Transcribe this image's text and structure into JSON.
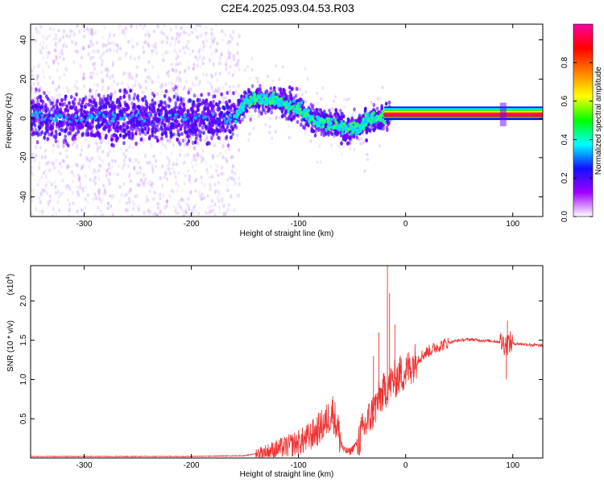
{
  "title": "C2E4.2025.093.04.53.R03",
  "colors": {
    "snr_line": "#ee3333",
    "axis": "#000000"
  },
  "chart_data": [
    {
      "type": "heatmap",
      "xlabel": "Height of straight line (km)",
      "ylabel": "Frequency (Hz)",
      "xlim": [
        -350,
        128
      ],
      "ylim": [
        -50,
        48
      ],
      "xticks": [
        -300,
        -200,
        -100,
        0,
        100
      ],
      "yticks": [
        -40,
        -20,
        0,
        20,
        40
      ],
      "colorbar": {
        "label": "Normalized spectral amplitude",
        "range": [
          0,
          1
        ],
        "ticks": [
          0.0,
          0.2,
          0.4,
          0.6,
          0.8
        ],
        "stops": [
          "#ffffff",
          "#a000ff",
          "#1010ff",
          "#00ffff",
          "#00ff00",
          "#ffff00",
          "#ff8000",
          "#ff0000",
          "#ff00a0"
        ]
      },
      "ridge": [
        [
          -350,
          1
        ],
        [
          -300,
          0
        ],
        [
          -250,
          1
        ],
        [
          -200,
          0
        ],
        [
          -160,
          0
        ],
        [
          -150,
          8
        ],
        [
          -140,
          10
        ],
        [
          -120,
          9
        ],
        [
          -100,
          5
        ],
        [
          -85,
          -1
        ],
        [
          -70,
          -3
        ],
        [
          -55,
          -5
        ],
        [
          -45,
          -5
        ],
        [
          -35,
          -1
        ],
        [
          -20,
          1
        ],
        [
          0,
          2
        ],
        [
          128,
          2
        ]
      ]
    },
    {
      "type": "line",
      "xlabel": "Height of straight line (km)",
      "ylabel": "SNR (10 * v/v)",
      "y_multiplier_label": "(x10",
      "y_multiplier_exp": "4",
      "y_multiplier_close": ")",
      "xlim": [
        -350,
        128
      ],
      "ylim": [
        0,
        2.45
      ],
      "xticks": [
        -300,
        -200,
        -100,
        0,
        100
      ],
      "yticks": [
        0.5,
        1.0,
        1.5,
        2.0
      ],
      "series": [
        {
          "x": [
            -350,
            -300,
            -250,
            -200,
            -150,
            -130,
            -110,
            -95,
            -85,
            -75,
            -68,
            -62,
            -58,
            -52,
            -45,
            -38,
            -30,
            -25,
            -20,
            -15,
            -10,
            -5,
            0,
            10,
            20,
            30,
            40,
            50,
            60,
            70,
            80,
            88,
            93,
            97,
            100,
            110,
            128
          ],
          "y": [
            0.02,
            0.02,
            0.02,
            0.02,
            0.03,
            0.08,
            0.15,
            0.22,
            0.32,
            0.45,
            0.6,
            0.3,
            0.1,
            0.08,
            0.2,
            0.4,
            0.6,
            0.75,
            0.85,
            0.95,
            1.0,
            1.05,
            1.1,
            1.25,
            1.35,
            1.42,
            1.47,
            1.5,
            1.51,
            1.5,
            1.49,
            1.48,
            1.45,
            1.47,
            1.46,
            1.45,
            1.43
          ]
        }
      ],
      "spikes": [
        [
          -17,
          2.45
        ],
        [
          -15,
          2.1
        ],
        [
          -10,
          1.7
        ],
        [
          -25,
          1.6
        ],
        [
          -30,
          1.3
        ],
        [
          -5,
          1.3
        ],
        [
          95,
          1.75
        ],
        [
          94,
          1.0
        ]
      ]
    }
  ]
}
